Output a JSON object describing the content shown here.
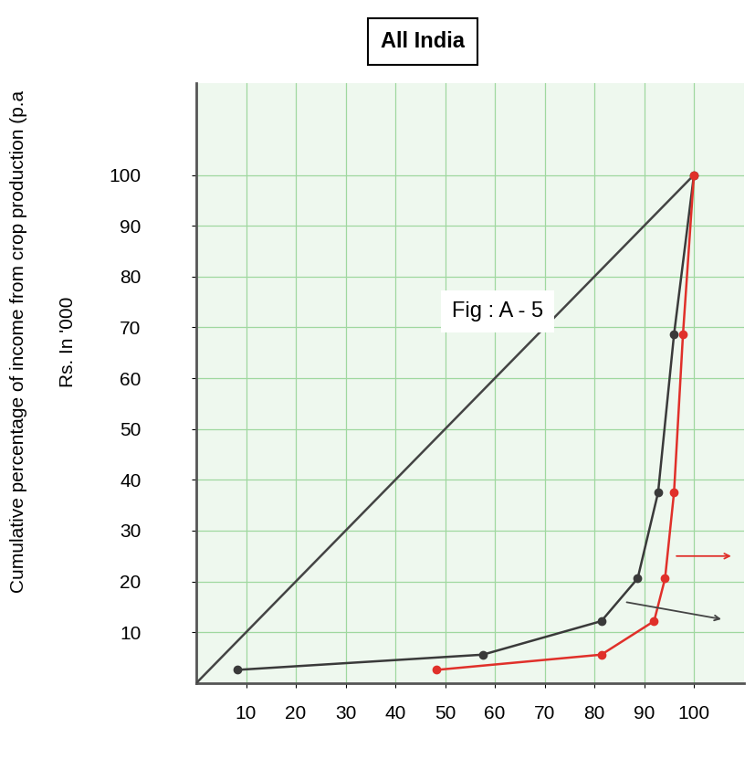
{
  "chart_data": {
    "type": "line",
    "title": "All India",
    "annotations": [
      "Fig : A - 5"
    ],
    "y_label": "Cumulative percentage of income from crop production (p.a",
    "y_unit_label": "Rs. In '000",
    "series": [
      {
        "color": "#444444",
        "marker": "none",
        "line_style": "solid",
        "x": [
          0,
          100
        ],
        "values": [
          0,
          100
        ]
      },
      {
        "color": "#3a3a3a",
        "marker": "o",
        "line_style": "solid",
        "x": [
          8.2,
          57.6,
          81.4,
          88.7,
          92.8,
          96.0,
          100
        ],
        "values": [
          2.6,
          5.6,
          12.2,
          20.6,
          37.5,
          68.6,
          100
        ]
      },
      {
        "color": "#e0302a",
        "marker": "o",
        "line_style": "solid",
        "x": [
          48.3,
          81.4,
          92.0,
          94.2,
          96.0,
          97.8,
          100
        ],
        "values": [
          2.6,
          5.6,
          12.2,
          20.6,
          37.5,
          68.6,
          100
        ]
      }
    ],
    "xlim": [
      0,
      110
    ],
    "ylim": [
      0,
      118
    ],
    "xticks": [
      10,
      20,
      30,
      40,
      50,
      60,
      70,
      80,
      90,
      100
    ],
    "yticks": [
      10,
      20,
      30,
      40,
      50,
      60,
      70,
      80,
      90,
      100
    ],
    "grid": true
  }
}
